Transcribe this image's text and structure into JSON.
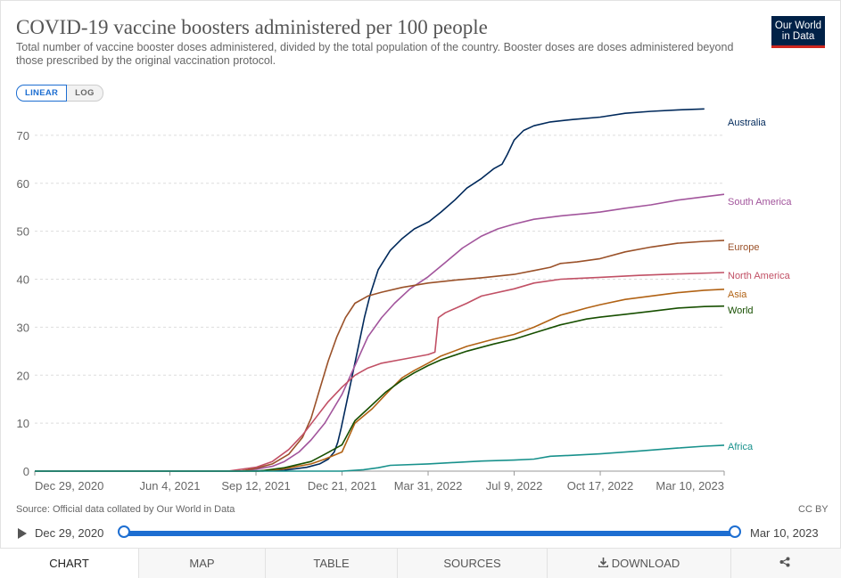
{
  "header": {
    "title": "COVID-19 vaccine boosters administered per 100 people",
    "subtitle": "Total number of vaccine booster doses administered, divided by the total population of the country. Booster doses are doses administered beyond those prescribed by the original vaccination protocol.",
    "logo_line1": "Our World",
    "logo_line2": "in Data"
  },
  "scale_toggle": {
    "linear_label": "LINEAR",
    "log_label": "LOG",
    "selected": "linear"
  },
  "chart_data": {
    "type": "line",
    "title": "COVID-19 vaccine boosters administered per 100 people",
    "xlabel": "",
    "ylabel": "",
    "x_range": [
      "2020-12-29",
      "2023-03-10"
    ],
    "ylim": [
      0,
      75
    ],
    "y_ticks": [
      0,
      10,
      20,
      30,
      40,
      50,
      60,
      70
    ],
    "x_ticks": [
      {
        "date": "2020-12-29",
        "label": "Dec 29, 2020"
      },
      {
        "date": "2021-06-04",
        "label": "Jun 4, 2021"
      },
      {
        "date": "2021-09-12",
        "label": "Sep 12, 2021"
      },
      {
        "date": "2021-12-21",
        "label": "Dec 21, 2021"
      },
      {
        "date": "2022-03-31",
        "label": "Mar 31, 2022"
      },
      {
        "date": "2022-07-09",
        "label": "Jul 9, 2022"
      },
      {
        "date": "2022-10-17",
        "label": "Oct 17, 2022"
      },
      {
        "date": "2023-03-10",
        "label": "Mar 10, 2023"
      }
    ],
    "grid": "horizontal-dashed",
    "legend": "right-end-labels",
    "series": [
      {
        "name": "Australia",
        "color": "#00295b",
        "points": [
          [
            "2020-12-29",
            0
          ],
          [
            "2021-08-25",
            0
          ],
          [
            "2021-10-15",
            0.2
          ],
          [
            "2021-11-10",
            0.8
          ],
          [
            "2021-11-25",
            1.5
          ],
          [
            "2021-12-05",
            2.5
          ],
          [
            "2021-12-12",
            4
          ],
          [
            "2021-12-16",
            6
          ],
          [
            "2021-12-20",
            9
          ],
          [
            "2021-12-26",
            14
          ],
          [
            "2022-01-02",
            20
          ],
          [
            "2022-01-09",
            26
          ],
          [
            "2022-01-16",
            32
          ],
          [
            "2022-01-23",
            37
          ],
          [
            "2022-02-01",
            42
          ],
          [
            "2022-02-15",
            46
          ],
          [
            "2022-03-01",
            48.5
          ],
          [
            "2022-03-15",
            50.5
          ],
          [
            "2022-04-01",
            52
          ],
          [
            "2022-04-15",
            54
          ],
          [
            "2022-05-01",
            56.5
          ],
          [
            "2022-05-15",
            59
          ],
          [
            "2022-06-01",
            61
          ],
          [
            "2022-06-15",
            63
          ],
          [
            "2022-06-25",
            64
          ],
          [
            "2022-07-01",
            66
          ],
          [
            "2022-07-09",
            69
          ],
          [
            "2022-07-20",
            71
          ],
          [
            "2022-08-01",
            72
          ],
          [
            "2022-08-20",
            72.8
          ],
          [
            "2022-09-15",
            73.3
          ],
          [
            "2022-10-17",
            73.8
          ],
          [
            "2022-11-15",
            74.6
          ],
          [
            "2022-12-15",
            75
          ],
          [
            "2023-01-15",
            75.3
          ],
          [
            "2023-02-15",
            75.5
          ]
        ]
      },
      {
        "name": "South America",
        "color": "#a2559c",
        "points": [
          [
            "2020-12-29",
            0
          ],
          [
            "2021-08-25",
            0
          ],
          [
            "2021-09-12",
            0.4
          ],
          [
            "2021-10-01",
            1
          ],
          [
            "2021-10-15",
            2
          ],
          [
            "2021-11-01",
            4
          ],
          [
            "2021-11-15",
            6.5
          ],
          [
            "2021-12-01",
            10
          ],
          [
            "2021-12-21",
            16
          ],
          [
            "2022-01-05",
            22
          ],
          [
            "2022-01-20",
            28
          ],
          [
            "2022-02-05",
            32
          ],
          [
            "2022-02-20",
            35
          ],
          [
            "2022-03-10",
            38
          ],
          [
            "2022-03-31",
            40.5
          ],
          [
            "2022-04-20",
            43.5
          ],
          [
            "2022-05-10",
            46.5
          ],
          [
            "2022-06-01",
            49
          ],
          [
            "2022-06-20",
            50.5
          ],
          [
            "2022-07-09",
            51.5
          ],
          [
            "2022-08-01",
            52.5
          ],
          [
            "2022-09-01",
            53.2
          ],
          [
            "2022-10-01",
            53.7
          ],
          [
            "2022-10-17",
            54
          ],
          [
            "2022-11-15",
            54.8
          ],
          [
            "2022-12-15",
            55.5
          ],
          [
            "2023-01-15",
            56.5
          ],
          [
            "2023-02-15",
            57.2
          ],
          [
            "2023-03-10",
            57.7
          ]
        ]
      },
      {
        "name": "Europe",
        "color": "#9a5129",
        "points": [
          [
            "2020-12-29",
            0
          ],
          [
            "2021-08-25",
            0
          ],
          [
            "2021-09-12",
            0.6
          ],
          [
            "2021-10-01",
            1.5
          ],
          [
            "2021-10-20",
            3.5
          ],
          [
            "2021-11-05",
            7
          ],
          [
            "2021-11-15",
            11
          ],
          [
            "2021-11-25",
            17
          ],
          [
            "2021-12-05",
            23
          ],
          [
            "2021-12-15",
            28
          ],
          [
            "2021-12-25",
            32
          ],
          [
            "2022-01-05",
            35
          ],
          [
            "2022-01-20",
            36.5
          ],
          [
            "2022-02-05",
            37.3
          ],
          [
            "2022-03-01",
            38.3
          ],
          [
            "2022-03-31",
            39.2
          ],
          [
            "2022-05-01",
            39.8
          ],
          [
            "2022-06-01",
            40.3
          ],
          [
            "2022-07-09",
            41
          ],
          [
            "2022-08-01",
            41.8
          ],
          [
            "2022-08-20",
            42.5
          ],
          [
            "2022-09-01",
            43.3
          ],
          [
            "2022-09-20",
            43.6
          ],
          [
            "2022-10-17",
            44.3
          ],
          [
            "2022-11-15",
            45.7
          ],
          [
            "2022-12-15",
            46.7
          ],
          [
            "2023-01-15",
            47.5
          ],
          [
            "2023-02-15",
            47.9
          ],
          [
            "2023-03-10",
            48.1
          ]
        ]
      },
      {
        "name": "North America",
        "color": "#c15065",
        "points": [
          [
            "2020-12-29",
            0
          ],
          [
            "2021-08-10",
            0
          ],
          [
            "2021-09-12",
            0.8
          ],
          [
            "2021-10-01",
            2
          ],
          [
            "2021-10-20",
            4.5
          ],
          [
            "2021-11-05",
            7.5
          ],
          [
            "2021-11-20",
            11
          ],
          [
            "2021-12-05",
            14.5
          ],
          [
            "2021-12-21",
            17.5
          ],
          [
            "2022-01-05",
            20
          ],
          [
            "2022-01-20",
            21.5
          ],
          [
            "2022-02-05",
            22.5
          ],
          [
            "2022-03-01",
            23.3
          ],
          [
            "2022-03-31",
            24.3
          ],
          [
            "2022-04-08",
            24.8
          ],
          [
            "2022-04-12",
            32
          ],
          [
            "2022-04-20",
            33
          ],
          [
            "2022-05-15",
            35
          ],
          [
            "2022-06-01",
            36.5
          ],
          [
            "2022-07-09",
            38
          ],
          [
            "2022-08-01",
            39.2
          ],
          [
            "2022-09-01",
            40
          ],
          [
            "2022-10-17",
            40.4
          ],
          [
            "2022-12-01",
            40.8
          ],
          [
            "2023-01-15",
            41.1
          ],
          [
            "2023-03-10",
            41.4
          ]
        ]
      },
      {
        "name": "Asia",
        "color": "#b16214",
        "points": [
          [
            "2020-12-29",
            0
          ],
          [
            "2021-09-20",
            0
          ],
          [
            "2021-10-15",
            0.5
          ],
          [
            "2021-11-15",
            1.5
          ],
          [
            "2021-12-01",
            2.5
          ],
          [
            "2021-12-21",
            4
          ],
          [
            "2022-01-05",
            10
          ],
          [
            "2022-01-25",
            13
          ],
          [
            "2022-02-15",
            17
          ],
          [
            "2022-03-01",
            19.5
          ],
          [
            "2022-03-15",
            21
          ],
          [
            "2022-03-31",
            22.5
          ],
          [
            "2022-04-15",
            24
          ],
          [
            "2022-05-15",
            26
          ],
          [
            "2022-06-15",
            27.5
          ],
          [
            "2022-07-09",
            28.5
          ],
          [
            "2022-08-01",
            30
          ],
          [
            "2022-09-01",
            32.5
          ],
          [
            "2022-10-01",
            34
          ],
          [
            "2022-10-17",
            34.7
          ],
          [
            "2022-11-15",
            35.8
          ],
          [
            "2022-12-15",
            36.5
          ],
          [
            "2023-01-15",
            37.2
          ],
          [
            "2023-02-15",
            37.7
          ],
          [
            "2023-03-10",
            37.9
          ]
        ]
      },
      {
        "name": "World",
        "color": "#174f00",
        "points": [
          [
            "2020-12-29",
            0
          ],
          [
            "2021-09-15",
            0
          ],
          [
            "2021-10-15",
            0.7
          ],
          [
            "2021-11-15",
            2
          ],
          [
            "2021-12-01",
            3.5
          ],
          [
            "2021-12-21",
            5.5
          ],
          [
            "2022-01-05",
            10.5
          ],
          [
            "2022-01-20",
            13
          ],
          [
            "2022-02-10",
            16.5
          ],
          [
            "2022-03-01",
            19
          ],
          [
            "2022-03-15",
            20.5
          ],
          [
            "2022-03-31",
            22
          ],
          [
            "2022-04-15",
            23.2
          ],
          [
            "2022-05-15",
            25
          ],
          [
            "2022-06-15",
            26.5
          ],
          [
            "2022-07-09",
            27.5
          ],
          [
            "2022-08-01",
            28.8
          ],
          [
            "2022-09-01",
            30.5
          ],
          [
            "2022-10-01",
            31.7
          ],
          [
            "2022-10-17",
            32.1
          ],
          [
            "2022-11-15",
            32.7
          ],
          [
            "2022-12-15",
            33.3
          ],
          [
            "2023-01-15",
            34
          ],
          [
            "2023-02-15",
            34.3
          ],
          [
            "2023-03-10",
            34.4
          ]
        ]
      },
      {
        "name": "Africa",
        "color": "#18918c",
        "points": [
          [
            "2020-12-29",
            0
          ],
          [
            "2021-12-21",
            0
          ],
          [
            "2022-01-15",
            0.3
          ],
          [
            "2022-02-01",
            0.7
          ],
          [
            "2022-02-15",
            1.2
          ],
          [
            "2022-03-31",
            1.5
          ],
          [
            "2022-05-01",
            1.8
          ],
          [
            "2022-06-01",
            2.1
          ],
          [
            "2022-07-09",
            2.3
          ],
          [
            "2022-08-01",
            2.5
          ],
          [
            "2022-08-20",
            3.1
          ],
          [
            "2022-09-15",
            3.3
          ],
          [
            "2022-10-17",
            3.6
          ],
          [
            "2022-12-01",
            4.2
          ],
          [
            "2023-01-15",
            4.8
          ],
          [
            "2023-02-15",
            5.2
          ],
          [
            "2023-03-10",
            5.4
          ]
        ]
      }
    ]
  },
  "footer": {
    "source": "Source: Official data collated by Our World in Data",
    "license": "CC BY"
  },
  "timeline": {
    "start_label": "Dec 29, 2020",
    "end_label": "Mar 10, 2023"
  },
  "tabs": [
    {
      "label": "CHART",
      "active": true
    },
    {
      "label": "MAP"
    },
    {
      "label": "TABLE"
    },
    {
      "label": "SOURCES"
    },
    {
      "label": "DOWNLOAD",
      "icon": "download-icon"
    },
    {
      "label": "",
      "icon": "share-icon"
    }
  ]
}
